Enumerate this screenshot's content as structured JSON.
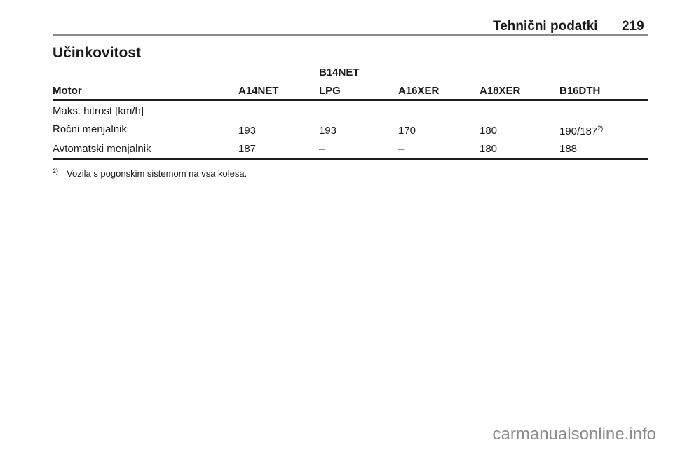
{
  "header": {
    "section": "Tehnični podatki",
    "page_number": "219"
  },
  "title": "Učinkovitost",
  "table": {
    "columns": [
      {
        "line1": "",
        "line2": "Motor"
      },
      {
        "line1": "",
        "line2": "A14NET"
      },
      {
        "line1": "B14NET",
        "line2": "LPG"
      },
      {
        "line1": "",
        "line2": "A16XER"
      },
      {
        "line1": "",
        "line2": "A18XER"
      },
      {
        "line1": "",
        "line2": "B16DTH"
      }
    ],
    "section_label": "Maks. hitrost [km/h]",
    "rows": [
      {
        "cells": [
          "Ročni menjalnik",
          "193",
          "193",
          "170",
          "180",
          "190/187"
        ],
        "note": "2)"
      },
      {
        "cells": [
          "Avtomatski menjalnik",
          "187",
          "–",
          "–",
          "180",
          "188"
        ],
        "note": ""
      }
    ]
  },
  "footnote": {
    "mark": "2)",
    "text": "Vozila s pogonskim sistemom na vsa kolesa."
  },
  "watermark": "carmanualsonline.info"
}
